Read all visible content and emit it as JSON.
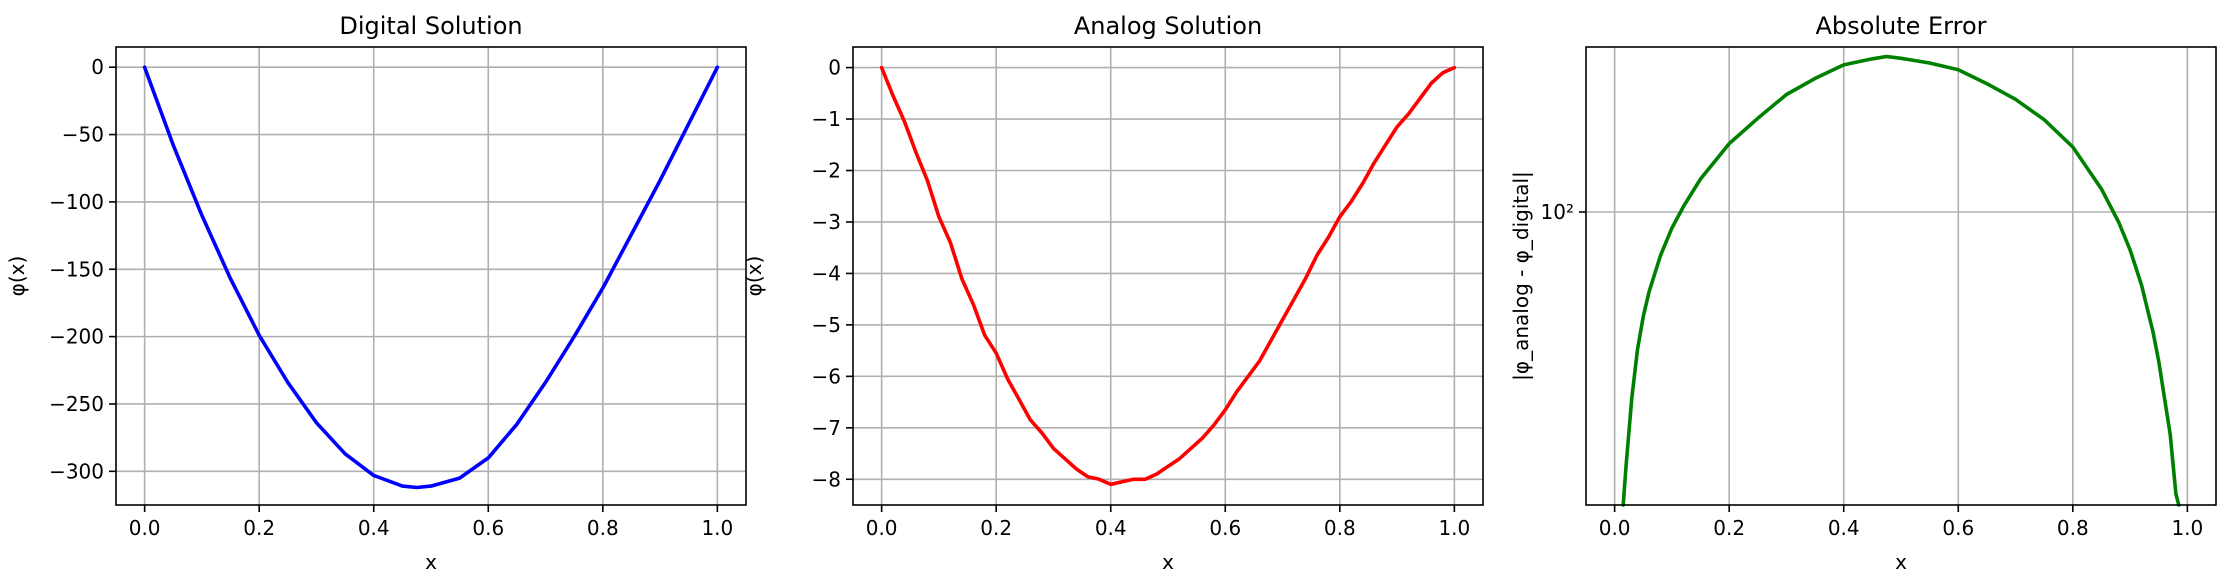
{
  "chart_data": [
    {
      "type": "line",
      "title": "Digital Solution",
      "xlabel": "x",
      "ylabel": "φ(x)",
      "xlim": [
        -0.05,
        1.05
      ],
      "ylim": [
        -325,
        15
      ],
      "xticks": [
        0.0,
        0.2,
        0.4,
        0.6,
        0.8,
        1.0
      ],
      "xticklabels": [
        "0.0",
        "0.2",
        "0.4",
        "0.6",
        "0.8",
        "1.0"
      ],
      "yticks": [
        0,
        -50,
        -100,
        -150,
        -200,
        -250,
        -300
      ],
      "yticklabels": [
        "0",
        "−50",
        "−100",
        "−150",
        "−200",
        "−250",
        "−300"
      ],
      "yscale": "linear",
      "grid": true,
      "color": "#0000ff",
      "series": [
        {
          "x": [
            0.0,
            0.05,
            0.1,
            0.15,
            0.2,
            0.25,
            0.3,
            0.35,
            0.4,
            0.45,
            0.475,
            0.5,
            0.55,
            0.6,
            0.65,
            0.7,
            0.75,
            0.8,
            0.85,
            0.9,
            0.95,
            1.0
          ],
          "y": [
            0,
            -58,
            -110,
            -157,
            -199,
            -234,
            -264,
            -287,
            -303,
            -311,
            -312,
            -311,
            -305,
            -290,
            -265,
            -234,
            -200,
            -164,
            -124,
            -84,
            -42,
            0
          ]
        }
      ]
    },
    {
      "type": "line",
      "title": "Analog Solution",
      "xlabel": "x",
      "ylabel": "φ(x)",
      "xlim": [
        -0.05,
        1.05
      ],
      "ylim": [
        -8.5,
        0.4
      ],
      "xticks": [
        0.0,
        0.2,
        0.4,
        0.6,
        0.8,
        1.0
      ],
      "xticklabels": [
        "0.0",
        "0.2",
        "0.4",
        "0.6",
        "0.8",
        "1.0"
      ],
      "yticks": [
        0,
        -1,
        -2,
        -3,
        -4,
        -5,
        -6,
        -7,
        -8
      ],
      "yticklabels": [
        "0",
        "−1",
        "−2",
        "−3",
        "−4",
        "−5",
        "−6",
        "−7",
        "−8"
      ],
      "yscale": "linear",
      "grid": true,
      "color": "#ff0000",
      "series": [
        {
          "x": [
            0.0,
            0.02,
            0.04,
            0.06,
            0.08,
            0.1,
            0.12,
            0.14,
            0.16,
            0.18,
            0.2,
            0.22,
            0.24,
            0.26,
            0.28,
            0.3,
            0.32,
            0.34,
            0.36,
            0.38,
            0.4,
            0.42,
            0.44,
            0.46,
            0.48,
            0.5,
            0.52,
            0.54,
            0.56,
            0.58,
            0.6,
            0.62,
            0.64,
            0.66,
            0.68,
            0.7,
            0.72,
            0.74,
            0.76,
            0.78,
            0.8,
            0.82,
            0.84,
            0.86,
            0.88,
            0.9,
            0.92,
            0.94,
            0.96,
            0.98,
            1.0
          ],
          "y": [
            0.0,
            -0.55,
            -1.05,
            -1.65,
            -2.2,
            -2.9,
            -3.4,
            -4.1,
            -4.6,
            -5.2,
            -5.55,
            -6.05,
            -6.45,
            -6.85,
            -7.1,
            -7.4,
            -7.6,
            -7.8,
            -7.95,
            -8.0,
            -8.1,
            -8.05,
            -8.0,
            -8.0,
            -7.9,
            -7.75,
            -7.6,
            -7.4,
            -7.2,
            -6.95,
            -6.65,
            -6.3,
            -6.0,
            -5.7,
            -5.3,
            -4.9,
            -4.5,
            -4.1,
            -3.65,
            -3.3,
            -2.9,
            -2.6,
            -2.25,
            -1.85,
            -1.5,
            -1.15,
            -0.9,
            -0.6,
            -0.3,
            -0.1,
            0.0
          ]
        }
      ]
    },
    {
      "type": "line",
      "title": "Absolute Error",
      "xlabel": "x",
      "ylabel": "|φ_analog - φ_digital|",
      "xlim": [
        -0.05,
        1.05
      ],
      "ylim": [
        12,
        330
      ],
      "xticks": [
        0.0,
        0.2,
        0.4,
        0.6,
        0.8,
        1.0
      ],
      "xticklabels": [
        "0.0",
        "0.2",
        "0.4",
        "0.6",
        "0.8",
        "1.0"
      ],
      "yticks": [
        100
      ],
      "yticklabels": [
        "10²"
      ],
      "yscale": "log",
      "grid": true,
      "color": "#008000",
      "series": [
        {
          "x": [
            0.015,
            0.02,
            0.03,
            0.04,
            0.05,
            0.06,
            0.08,
            0.1,
            0.12,
            0.15,
            0.2,
            0.25,
            0.3,
            0.35,
            0.4,
            0.45,
            0.475,
            0.5,
            0.55,
            0.6,
            0.65,
            0.7,
            0.75,
            0.8,
            0.85,
            0.88,
            0.9,
            0.92,
            0.94,
            0.95,
            0.96,
            0.97,
            0.98,
            0.985
          ],
          "y": [
            12,
            16,
            26,
            37,
            47,
            56,
            73,
            89,
            104,
            127,
            164,
            197,
            234,
            263,
            290,
            303,
            308,
            304,
            294,
            280,
            253,
            226,
            195,
            160,
            118,
            93,
            76,
            59,
            42,
            34,
            26,
            20,
            13,
            12
          ]
        }
      ]
    }
  ]
}
